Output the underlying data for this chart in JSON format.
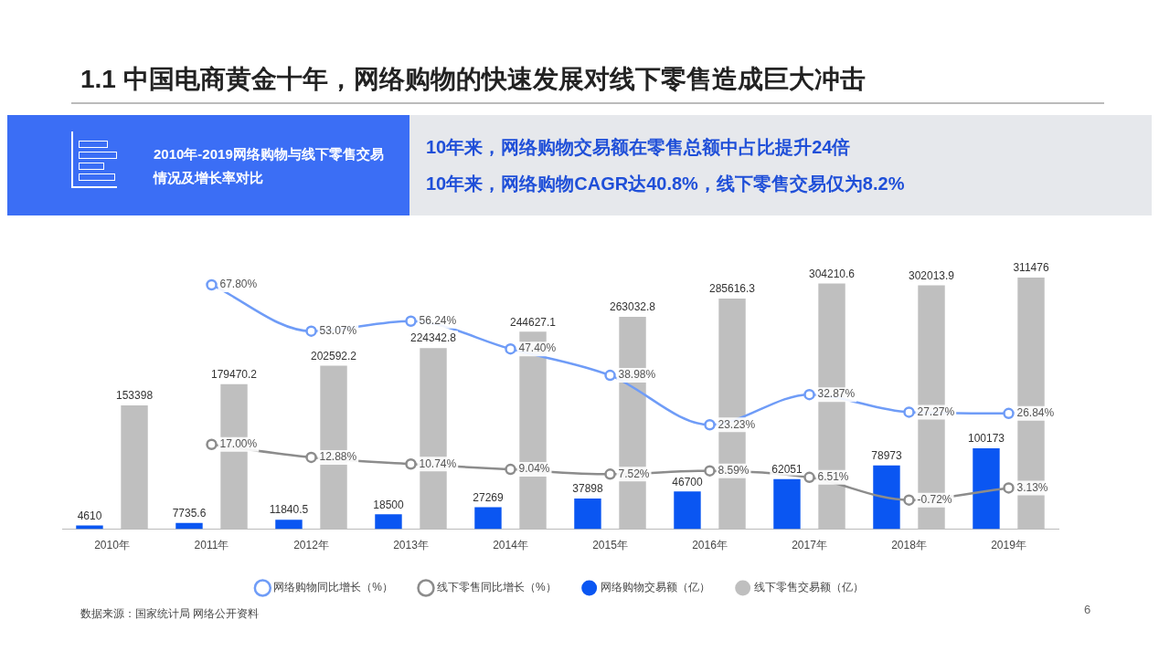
{
  "chart_data": {
    "type": "bar",
    "title": "1.1 中国电商黄金十年，网络购物的快速发展对线下零售造成巨大冲击",
    "subtitle": "2010年-2019网络购物与线下零售交易情况及增长率对比",
    "annotations": [
      "10年来，网络购物交易额在零售总额中占比提升24倍",
      "10年来，网络购物CAGR达40.8%，线下零售交易仅为8.2%",
      "数据来源：国家统计局 网络公开资料",
      "6"
    ],
    "categories": [
      "2010年",
      "2011年",
      "2012年",
      "2013年",
      "2014年",
      "2015年",
      "2016年",
      "2017年",
      "2018年",
      "2019年"
    ],
    "series": [
      {
        "name": "网络购物交易额（亿）",
        "type": "bar",
        "color": "#0a56f2",
        "values": [
          4610,
          7735.6,
          11840.5,
          18500,
          27269,
          37898,
          46700,
          62051,
          78973,
          100173
        ],
        "value_labels": [
          "4610",
          "7735.6",
          "11840.5",
          "18500",
          "27269",
          "37898",
          "46700",
          "62051",
          "78973",
          "100173"
        ]
      },
      {
        "name": "线下零售交易额（亿）",
        "type": "bar",
        "color": "#bfbfbf",
        "values": [
          153398,
          179470.2,
          202592.2,
          224342.8,
          244627.1,
          263032.8,
          285616.3,
          304210.6,
          302013.9,
          311476
        ],
        "value_labels": [
          "153398",
          "179470.2",
          "202592.2",
          "224342.8",
          "244627.1",
          "263032.8",
          "285616.3",
          "304210.6",
          "302013.9",
          "311476"
        ]
      },
      {
        "name": "网络购物同比增长（%）",
        "type": "line",
        "axis": "y2",
        "color": "#6f9cf7",
        "values": [
          null,
          67.8,
          53.07,
          56.24,
          47.4,
          38.98,
          23.23,
          32.87,
          27.27,
          26.84
        ],
        "value_labels": [
          null,
          "67.80%",
          "53.07%",
          "56.24%",
          "47.40%",
          "38.98%",
          "23.23%",
          "32.87%",
          "27.27%",
          "26.84%"
        ]
      },
      {
        "name": "线下零售同比增长（%）",
        "type": "line",
        "axis": "y2",
        "color": "#8c8c8c",
        "values": [
          null,
          17,
          12.88,
          10.74,
          9.04,
          7.52,
          8.59,
          6.51,
          -0.72,
          3.13
        ],
        "value_labels": [
          null,
          "17.00%",
          "12.88%",
          "10.74%",
          "9.04%",
          "7.52%",
          "8.59%",
          "6.51%",
          "-0.72%",
          "3.13%"
        ]
      }
    ],
    "tick_labels": "x",
    "grid": false,
    "legend": "bottom",
    "marker": "circle",
    "line_style": "solid"
  }
}
